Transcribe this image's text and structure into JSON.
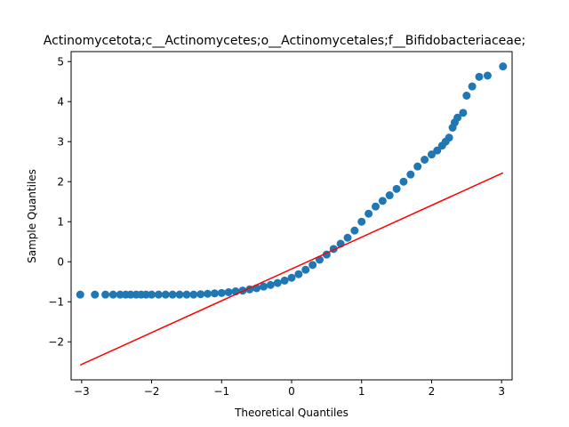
{
  "chart_data": {
    "type": "scatter",
    "title": "Actinomycetota;c__Actinomycetes;o__Actinomycetales;f__Bifidobacteriaceae;",
    "xlabel": "Theoretical Quantiles",
    "ylabel": "Sample Quantiles",
    "xlim": [
      -3.15,
      3.15
    ],
    "ylim": [
      -2.95,
      5.25
    ],
    "xticks": [
      -3,
      -2,
      -1,
      0,
      1,
      2,
      3
    ],
    "yticks": [
      -2,
      -1,
      0,
      1,
      2,
      3,
      4,
      5
    ],
    "xtick_labels": [
      "−3",
      "−2",
      "−1",
      "0",
      "1",
      "2",
      "3"
    ],
    "ytick_labels": [
      "−2",
      "−1",
      "0",
      "1",
      "2",
      "3",
      "4",
      "5"
    ],
    "grid": false,
    "legend": "none",
    "marker_color": "#1f77b4",
    "line_color": "#ff0000",
    "series": [
      {
        "type": "scatter",
        "points": [
          [
            -3.02,
            -0.82
          ],
          [
            -2.81,
            -0.82
          ],
          [
            -2.66,
            -0.82
          ],
          [
            -2.55,
            -0.82
          ],
          [
            -2.45,
            -0.82
          ],
          [
            -2.37,
            -0.82
          ],
          [
            -2.3,
            -0.82
          ],
          [
            -2.22,
            -0.82
          ],
          [
            -2.15,
            -0.82
          ],
          [
            -2.08,
            -0.82
          ],
          [
            -2.0,
            -0.82
          ],
          [
            -1.9,
            -0.82
          ],
          [
            -1.8,
            -0.82
          ],
          [
            -1.7,
            -0.82
          ],
          [
            -1.6,
            -0.82
          ],
          [
            -1.5,
            -0.82
          ],
          [
            -1.4,
            -0.82
          ],
          [
            -1.3,
            -0.81
          ],
          [
            -1.2,
            -0.8
          ],
          [
            -1.1,
            -0.79
          ],
          [
            -1.0,
            -0.78
          ],
          [
            -0.9,
            -0.76
          ],
          [
            -0.8,
            -0.74
          ],
          [
            -0.7,
            -0.72
          ],
          [
            -0.6,
            -0.69
          ],
          [
            -0.5,
            -0.66
          ],
          [
            -0.4,
            -0.62
          ],
          [
            -0.3,
            -0.58
          ],
          [
            -0.2,
            -0.53
          ],
          [
            -0.1,
            -0.47
          ],
          [
            0.0,
            -0.4
          ],
          [
            0.1,
            -0.31
          ],
          [
            0.2,
            -0.2
          ],
          [
            0.3,
            -0.08
          ],
          [
            0.4,
            0.05
          ],
          [
            0.5,
            0.18
          ],
          [
            0.6,
            0.32
          ],
          [
            0.7,
            0.45
          ],
          [
            0.8,
            0.6
          ],
          [
            0.9,
            0.78
          ],
          [
            1.0,
            1.0
          ],
          [
            1.1,
            1.2
          ],
          [
            1.2,
            1.38
          ],
          [
            1.3,
            1.52
          ],
          [
            1.4,
            1.66
          ],
          [
            1.5,
            1.82
          ],
          [
            1.6,
            2.0
          ],
          [
            1.7,
            2.18
          ],
          [
            1.8,
            2.38
          ],
          [
            1.9,
            2.55
          ],
          [
            2.0,
            2.68
          ],
          [
            2.08,
            2.78
          ],
          [
            2.15,
            2.9
          ],
          [
            2.2,
            3.0
          ],
          [
            2.25,
            3.1
          ],
          [
            2.3,
            3.35
          ],
          [
            2.33,
            3.48
          ],
          [
            2.37,
            3.6
          ],
          [
            2.45,
            3.72
          ],
          [
            2.5,
            4.15
          ],
          [
            2.58,
            4.38
          ],
          [
            2.68,
            4.62
          ],
          [
            2.8,
            4.65
          ],
          [
            3.02,
            4.88
          ]
        ]
      },
      {
        "type": "line",
        "points": [
          [
            -3.02,
            -2.58
          ],
          [
            3.02,
            2.22
          ]
        ]
      }
    ]
  }
}
